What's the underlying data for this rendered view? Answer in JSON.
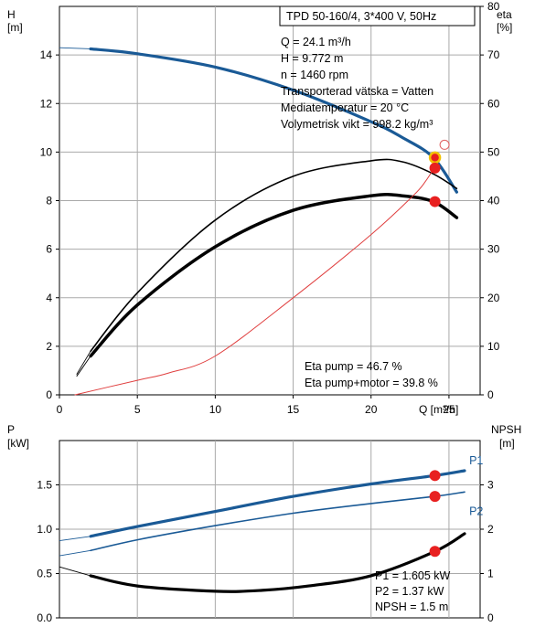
{
  "chart_data": [
    {
      "type": "line",
      "title": "TPD 50-160/4, 3*400 V, 50Hz",
      "xlabel": "Q [m³/h]",
      "x_ticks": [
        "0",
        "5",
        "10",
        "15",
        "20",
        "25"
      ],
      "xlim": [
        0,
        27
      ],
      "y_left": {
        "label_top": "H",
        "label_unit": "[m]",
        "ylim": [
          0,
          16
        ],
        "ticks": [
          "0",
          "2",
          "4",
          "6",
          "8",
          "10",
          "12",
          "14"
        ]
      },
      "y_right": {
        "label_top": "eta",
        "label_unit": "[%]",
        "ylim": [
          0,
          80
        ],
        "ticks": [
          "0",
          "10",
          "20",
          "30",
          "40",
          "50",
          "60",
          "70",
          "80"
        ]
      },
      "grid": true,
      "series": [
        {
          "axis": "left",
          "color": "#1a5a96",
          "width": 3.2,
          "ext": [
            0,
            14.3
          ],
          "x": [
            2,
            5,
            10,
            15,
            20,
            22,
            24,
            25.5
          ],
          "y": [
            14.25,
            14.05,
            13.5,
            12.55,
            11.25,
            10.6,
            9.77,
            8.35
          ]
        },
        {
          "axis": "right",
          "color": "#000000",
          "width": 1.6,
          "ext": [
            1.1,
            4.2
          ],
          "x": [
            2,
            5,
            10,
            15,
            20,
            22,
            24,
            25.5
          ],
          "y": [
            9,
            21,
            36,
            45,
            48.2,
            48,
            45.5,
            42.5
          ]
        },
        {
          "axis": "right",
          "color": "#000000",
          "width": 3.5,
          "ext": [
            1.1,
            3.8
          ],
          "x": [
            2,
            5,
            10,
            15,
            20,
            22,
            24,
            25.5
          ],
          "y": [
            8,
            18.5,
            30.5,
            38,
            41,
            41,
            39.8,
            36.5
          ]
        },
        {
          "axis": "right",
          "color": "#e04040",
          "width": 1,
          "ext": null,
          "x": [
            1,
            5,
            7,
            10,
            15,
            20,
            22.7,
            23.5,
            24.1
          ],
          "y": [
            0,
            3,
            4.5,
            8,
            20,
            33,
            41,
            44,
            47
          ]
        }
      ],
      "markers": [
        {
          "axis": "left",
          "x": 24.1,
          "y": 9.772,
          "color": "#e82020",
          "ring": "#f2c200"
        },
        {
          "axis": "right",
          "x": 24.1,
          "y": 46.7,
          "color": "#e82020"
        },
        {
          "axis": "right",
          "x": 24.1,
          "y": 39.8,
          "color": "#e82020"
        },
        {
          "axis": "left",
          "x": 24.6,
          "y": 10.3,
          "color": "none",
          "ring": "#e06060",
          "open": true
        }
      ],
      "info": [
        "Q = 24.1 m³/h",
        "H = 9.772 m",
        "n = 1460 rpm",
        "Transporterad vätska = Vatten",
        "Mediatemperatur = 20 °C",
        "Volymetrisk vikt = 998.2 kg/m³"
      ],
      "eta_info": [
        "Eta pump = 46.7 %",
        "Eta pump+motor = 39.8 %"
      ]
    },
    {
      "type": "line",
      "xlim": [
        0,
        27
      ],
      "y_left": {
        "label_top": "P",
        "label_unit": "[kW]",
        "ylim": [
          0,
          2.0
        ],
        "ticks": [
          "0.0",
          "0.5",
          "1.0",
          "1.5"
        ]
      },
      "y_right": {
        "label_top": "NPSH",
        "label_unit": "[m]",
        "ylim": [
          0,
          4.0
        ],
        "ticks": [
          "0",
          "1",
          "2",
          "3"
        ]
      },
      "grid": true,
      "series": [
        {
          "name": "P1",
          "axis": "left",
          "color": "#1a5a96",
          "width": 3.2,
          "ext": [
            0,
            0.87
          ],
          "label_x": 26.3,
          "label_y": 1.73,
          "x": [
            2,
            5,
            10,
            15,
            20,
            24.1,
            26
          ],
          "y": [
            0.92,
            1.03,
            1.2,
            1.37,
            1.51,
            1.605,
            1.66
          ]
        },
        {
          "name": "P2",
          "axis": "left",
          "color": "#1a5a96",
          "width": 1.6,
          "ext": [
            0,
            0.7
          ],
          "label_x": 26.3,
          "label_y": 1.16,
          "x": [
            2,
            5,
            10,
            15,
            20,
            24.1,
            26
          ],
          "y": [
            0.76,
            0.88,
            1.04,
            1.18,
            1.29,
            1.37,
            1.42
          ]
        },
        {
          "axis": "right",
          "color": "#000000",
          "width": 3.2,
          "ext": [
            0,
            1.15
          ],
          "x": [
            2,
            5,
            10,
            13,
            16,
            20,
            24.1,
            26
          ],
          "y": [
            0.95,
            0.72,
            0.6,
            0.62,
            0.72,
            0.95,
            1.5,
            1.9
          ]
        }
      ],
      "markers": [
        {
          "axis": "left",
          "x": 24.1,
          "y": 1.605,
          "color": "#e82020"
        },
        {
          "axis": "left",
          "x": 24.1,
          "y": 1.37,
          "color": "#e82020"
        },
        {
          "axis": "right",
          "x": 24.1,
          "y": 1.5,
          "color": "#e82020"
        }
      ],
      "info": [
        "P1 = 1.605 kW",
        "P2 = 1.37 kW",
        "NPSH = 1.5 m"
      ]
    }
  ]
}
